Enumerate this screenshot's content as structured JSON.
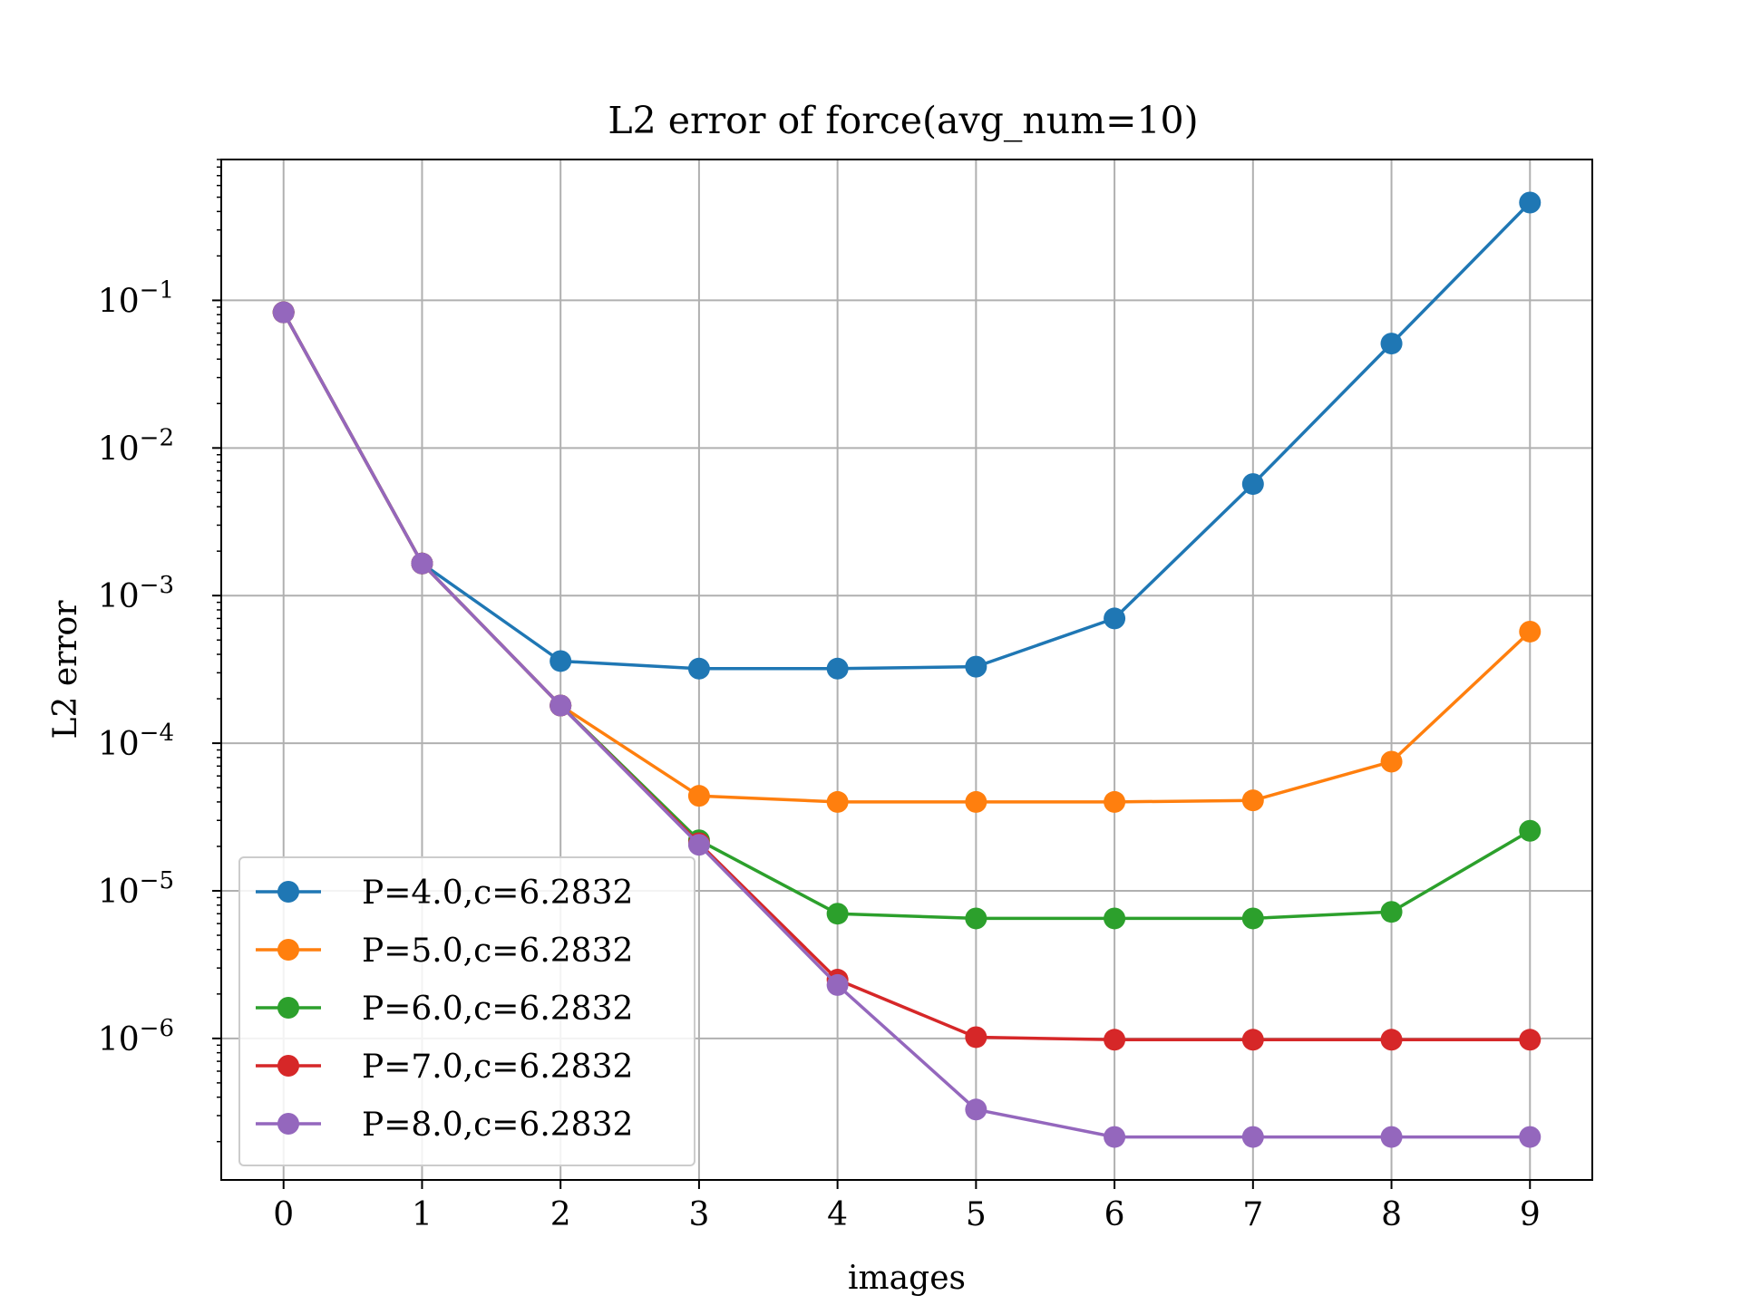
{
  "chart_data": {
    "type": "line",
    "title": "L2 error of force(avg_num=10)",
    "xlabel": "images",
    "ylabel": "L2 error",
    "x": [
      0,
      1,
      2,
      3,
      4,
      5,
      6,
      7,
      8,
      9
    ],
    "x_ticks": [
      "0",
      "1",
      "2",
      "3",
      "4",
      "5",
      "6",
      "7",
      "8",
      "9"
    ],
    "xlim": [
      -0.45,
      9.45
    ],
    "y_scale": "log",
    "ylim": [
      1.1e-07,
      0.9
    ],
    "y_ticks": [
      {
        "base": "10",
        "exp": "−1",
        "value": 0.1
      },
      {
        "base": "10",
        "exp": "−2",
        "value": 0.01
      },
      {
        "base": "10",
        "exp": "−3",
        "value": 0.001
      },
      {
        "base": "10",
        "exp": "−4",
        "value": 0.0001
      },
      {
        "base": "10",
        "exp": "−5",
        "value": 1e-05
      },
      {
        "base": "10",
        "exp": "−6",
        "value": 1e-06
      }
    ],
    "grid": true,
    "legend_position": "lower-left",
    "series": [
      {
        "name": "P=4.0,c=6.2832",
        "color": "#1f77b4",
        "values": [
          0.083,
          0.00165,
          0.00036,
          0.00032,
          0.00032,
          0.00033,
          0.0007,
          0.0057,
          0.051,
          0.46
        ]
      },
      {
        "name": "P=5.0,c=6.2832",
        "color": "#ff7f0e",
        "values": [
          0.083,
          0.00165,
          0.00018,
          4.4e-05,
          4e-05,
          4e-05,
          4e-05,
          4.1e-05,
          7.5e-05,
          0.00057
        ]
      },
      {
        "name": "P=6.0,c=6.2832",
        "color": "#2ca02c",
        "values": [
          0.083,
          0.00165,
          0.00018,
          2.2e-05,
          7e-06,
          6.5e-06,
          6.5e-06,
          6.5e-06,
          7.2e-06,
          2.55e-05
        ]
      },
      {
        "name": "P=7.0,c=6.2832",
        "color": "#d62728",
        "values": [
          0.083,
          0.00165,
          0.00018,
          2.1e-05,
          2.5e-06,
          1.02e-06,
          9.8e-07,
          9.8e-07,
          9.8e-07,
          9.8e-07
        ]
      },
      {
        "name": "P=8.0,c=6.2832",
        "color": "#9467bd",
        "values": [
          0.083,
          0.00165,
          0.00018,
          2.05e-05,
          2.3e-06,
          3.3e-07,
          2.15e-07,
          2.15e-07,
          2.15e-07,
          2.15e-07
        ]
      }
    ]
  }
}
